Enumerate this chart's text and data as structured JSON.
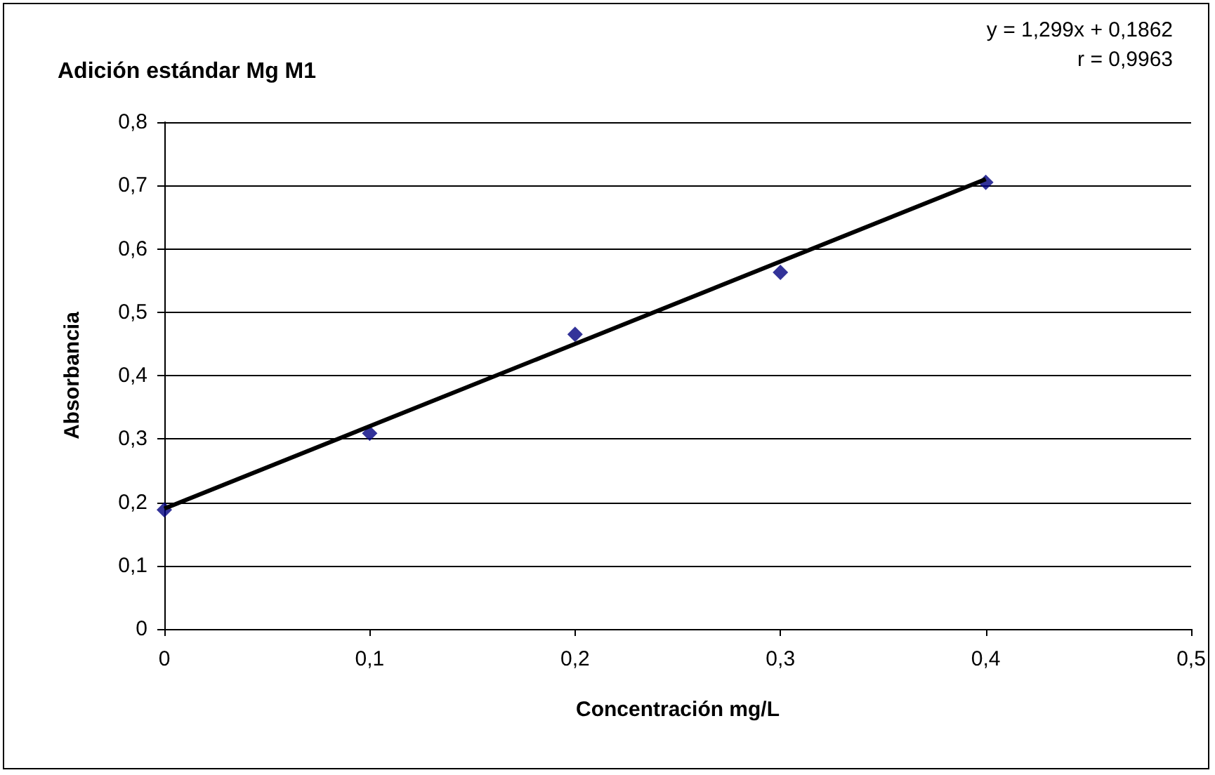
{
  "chart_data": {
    "type": "scatter",
    "title": "Adición estándar Mg M1",
    "xlabel": "Concentración mg/L",
    "ylabel": "Absorbancia",
    "annotations": [
      "y = 1,299x + 0,1862",
      "r = 0,9963"
    ],
    "series": [
      {
        "color": "#000080",
        "marker": "diamond",
        "x": [
          0,
          0.1,
          0.2,
          0.3,
          0.4
        ],
        "values": [
          0.188,
          0.309,
          0.465,
          0.563,
          0.705
        ]
      },
      {
        "type": "line",
        "color": "#000000",
        "marker": "none",
        "x": [
          0,
          0.4
        ],
        "values": [
          0.19,
          0.71
        ]
      }
    ],
    "xlim": [
      0,
      0.5
    ],
    "xticks": [
      0,
      {
        "value": 0.1,
        "label": "0,1"
      },
      {
        "value": 0.2,
        "label": "0,2"
      },
      {
        "value": 0.3,
        "label": "0,3"
      },
      {
        "value": 0.4,
        "label": "0,4"
      },
      {
        "value": 0.5,
        "label": "0,5"
      }
    ],
    "ylim": [
      0,
      0.8
    ],
    "yticks": [
      0,
      {
        "value": 0.1,
        "label": "0,1"
      },
      {
        "value": 0.2,
        "label": "0,2"
      },
      {
        "value": 0.3,
        "label": "0,3"
      },
      {
        "value": 0.4,
        "label": "0,4"
      },
      {
        "value": 0.5,
        "label": "0,5"
      },
      {
        "value": 0.6,
        "label": "0,6"
      },
      {
        "value": 0.7,
        "label": "0,7"
      },
      {
        "value": 0.8,
        "label": "0,8"
      }
    ],
    "grid": "y"
  }
}
